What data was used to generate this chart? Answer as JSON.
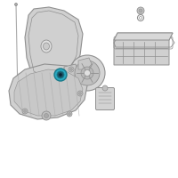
{
  "bg_color": "#ffffff",
  "part_color": "#d0d0d0",
  "part_edge": "#909090",
  "part_edge_dark": "#707070",
  "highlight_fill": "#29a8c0",
  "highlight_edge": "#1a7a8a",
  "rib_color": "#b0b0b0",
  "fig_width": 2.0,
  "fig_height": 2.0,
  "dpi": 100
}
